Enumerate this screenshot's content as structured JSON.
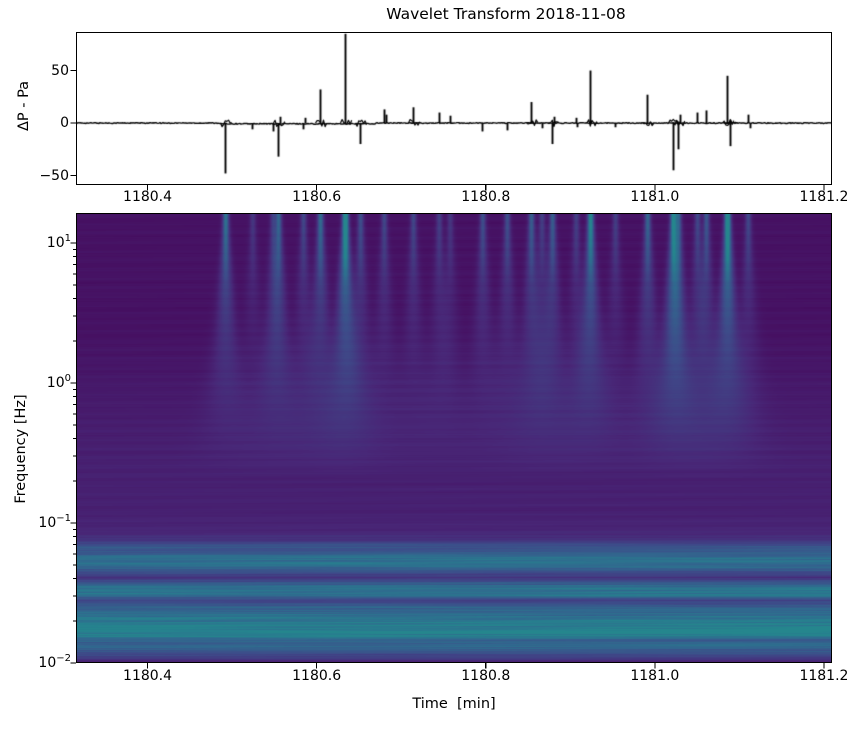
{
  "figure": {
    "title": "Wavelet Transform 2018-11-08",
    "background": "#ffffff"
  },
  "chart_data": [
    {
      "type": "line",
      "name": "pressure-trace",
      "ylabel": "ΔP - Pa",
      "line_color": "#000000",
      "xlim": [
        1180.3154,
        1181.2095
      ],
      "ylim": [
        -59,
        86.7
      ],
      "baseline": 0,
      "yticks": [
        {
          "value": 50,
          "label": "50"
        },
        {
          "value": 0,
          "label": "0"
        },
        {
          "value": -50,
          "label": "−50"
        }
      ],
      "xticks": [
        {
          "value": 1180.4,
          "label": "1180.4"
        },
        {
          "value": 1180.6,
          "label": "1180.6"
        },
        {
          "value": 1180.8,
          "label": "1180.8"
        },
        {
          "value": 1181.0,
          "label": "1181.0"
        },
        {
          "value": 1181.2,
          "label": "1181.2"
        }
      ],
      "spikes": [
        [
          1180.492,
          -48
        ],
        [
          1180.524,
          -6
        ],
        [
          1180.548,
          -8
        ],
        [
          1180.5545,
          -32
        ],
        [
          1180.557,
          6
        ],
        [
          1180.584,
          -6
        ],
        [
          1180.586,
          5
        ],
        [
          1180.604,
          32
        ],
        [
          1180.6335,
          85
        ],
        [
          1180.6515,
          -20
        ],
        [
          1180.6795,
          13
        ],
        [
          1180.682,
          8
        ],
        [
          1180.714,
          15
        ],
        [
          1180.7445,
          10
        ],
        [
          1180.7575,
          7
        ],
        [
          1180.796,
          -8
        ],
        [
          1180.825,
          -7
        ],
        [
          1180.8535,
          20
        ],
        [
          1180.866,
          -5
        ],
        [
          1180.8785,
          -20
        ],
        [
          1180.881,
          6
        ],
        [
          1180.9065,
          5
        ],
        [
          1180.9075,
          -4
        ],
        [
          1180.9235,
          50
        ],
        [
          1180.953,
          -4
        ],
        [
          1180.991,
          27
        ],
        [
          1181.0215,
          -45
        ],
        [
          1181.0275,
          -25
        ],
        [
          1181.03,
          8
        ],
        [
          1181.05,
          10
        ],
        [
          1181.0605,
          12
        ],
        [
          1181.0855,
          45
        ],
        [
          1181.0885,
          -22
        ],
        [
          1181.11,
          8
        ],
        [
          1181.113,
          -5
        ]
      ]
    },
    {
      "type": "heatmap",
      "name": "wavelet-scalogram",
      "ylabel": "Frequency [Hz]",
      "xlabel": "Time  [min]",
      "colormap": "viridis",
      "colormap_stops": [
        [
          0.0,
          "#440154"
        ],
        [
          0.125,
          "#482878"
        ],
        [
          0.25,
          "#3e4a89"
        ],
        [
          0.375,
          "#31688e"
        ],
        [
          0.5,
          "#26828e"
        ],
        [
          0.625,
          "#1f9e89"
        ],
        [
          0.75,
          "#35b779"
        ],
        [
          0.875,
          "#6ece58"
        ],
        [
          1.0,
          "#fde725"
        ]
      ],
      "xlim": [
        1180.3154,
        1181.2095
      ],
      "ylog_range": [
        1.2143,
        -2.0
      ],
      "yticks": [
        {
          "exp": "1"
        },
        {
          "exp": "0"
        },
        {
          "exp": "−1"
        },
        {
          "exp": "−2"
        }
      ],
      "ytick_base": "10",
      "ytick_exponents_numeric": [
        1,
        0,
        -1,
        -2
      ],
      "xticks": [
        {
          "value": 1180.4,
          "label": "1180.4"
        },
        {
          "value": 1180.6,
          "label": "1180.6"
        },
        {
          "value": 1180.8,
          "label": "1180.8"
        },
        {
          "value": 1181.0,
          "label": "1181.0"
        },
        {
          "value": 1181.2,
          "label": "1181.2"
        }
      ],
      "background_level": 0.055,
      "mid_lift": 0.045,
      "events": [
        [
          1180.492,
          0.6
        ],
        [
          1180.524,
          0.2
        ],
        [
          1180.548,
          0.25
        ],
        [
          1180.5545,
          0.5
        ],
        [
          1180.584,
          0.3
        ],
        [
          1180.604,
          0.55
        ],
        [
          1180.6335,
          1.0
        ],
        [
          1180.6515,
          0.35
        ],
        [
          1180.6795,
          0.3
        ],
        [
          1180.714,
          0.3
        ],
        [
          1180.7445,
          0.25
        ],
        [
          1180.7575,
          0.2
        ],
        [
          1180.796,
          0.35
        ],
        [
          1180.825,
          0.35
        ],
        [
          1180.8535,
          0.45
        ],
        [
          1180.866,
          0.25
        ],
        [
          1180.8785,
          0.45
        ],
        [
          1180.9065,
          0.25
        ],
        [
          1180.9235,
          0.8
        ],
        [
          1180.953,
          0.25
        ],
        [
          1180.991,
          0.5
        ],
        [
          1181.0215,
          0.85
        ],
        [
          1181.0275,
          0.45
        ],
        [
          1181.05,
          0.3
        ],
        [
          1181.0605,
          0.4
        ],
        [
          1181.0855,
          1.0
        ],
        [
          1181.11,
          0.3
        ]
      ],
      "band_profile": [
        [
          -2.0,
          0.0
        ],
        [
          -1.965,
          0.1
        ],
        [
          -1.935,
          0.17
        ],
        [
          -1.9,
          0.25
        ],
        [
          -1.862,
          0.27
        ],
        [
          -1.838,
          0.22
        ],
        [
          -1.81,
          0.38
        ],
        [
          -1.775,
          0.42
        ],
        [
          -1.73,
          0.38
        ],
        [
          -1.68,
          0.33
        ],
        [
          -1.64,
          0.28
        ],
        [
          -1.6,
          0.24
        ],
        [
          -1.555,
          0.12
        ],
        [
          -1.52,
          0.32
        ],
        [
          -1.47,
          0.34
        ],
        [
          -1.43,
          0.2
        ],
        [
          -1.39,
          0.06
        ],
        [
          -1.35,
          0.18
        ],
        [
          -1.31,
          0.3
        ],
        [
          -1.26,
          0.33
        ],
        [
          -1.22,
          0.22
        ],
        [
          -1.16,
          0.18
        ],
        [
          -1.12,
          0.05
        ],
        [
          -1.05,
          0.015
        ],
        [
          -0.9,
          0.0
        ]
      ]
    }
  ]
}
